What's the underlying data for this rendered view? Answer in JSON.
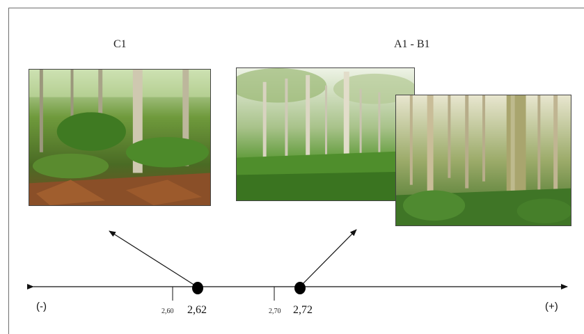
{
  "groups": {
    "left_label": "C1",
    "right_label": "A1 - B1"
  },
  "photos": {
    "left": "forest-understory-photo",
    "right_back": "tree-plantation-grass-photo",
    "right_front": "tree-plantation-trunk-photo"
  },
  "axis": {
    "negative_label": "(-)",
    "positive_label": "(+)",
    "ticks": [
      {
        "value": 2.6,
        "label": "2,60"
      },
      {
        "value": 2.7,
        "label": "2,70"
      }
    ],
    "points": [
      {
        "value": 2.62,
        "label": "2,62"
      },
      {
        "value": 2.72,
        "label": "2,72"
      }
    ]
  }
}
